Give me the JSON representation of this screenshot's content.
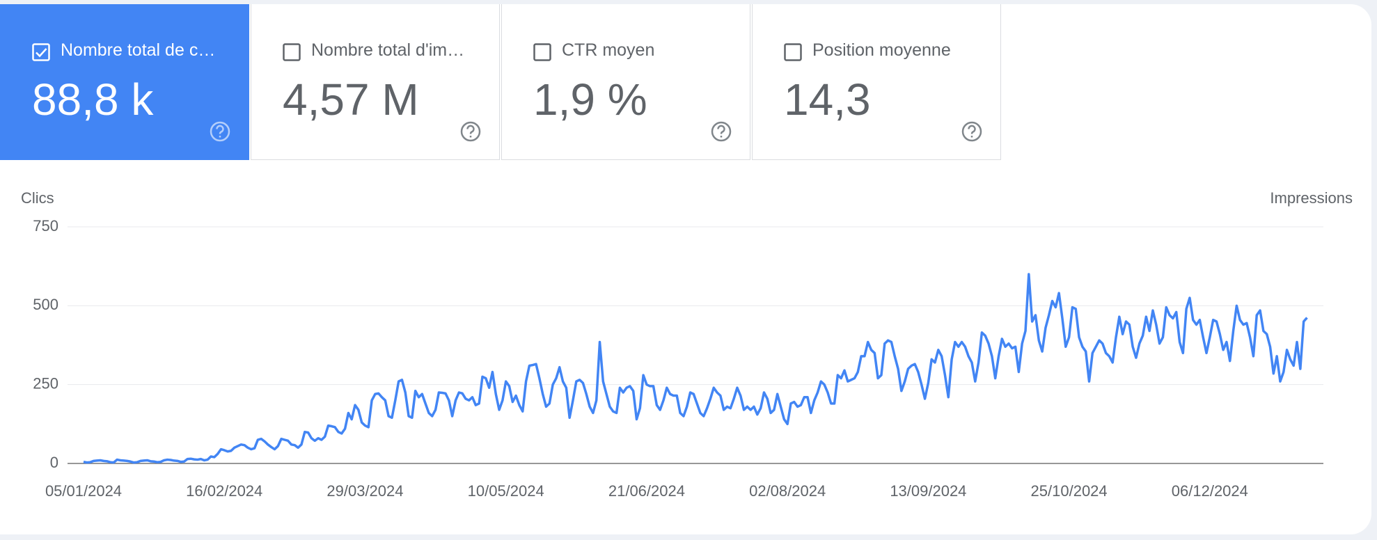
{
  "cards": [
    {
      "label": "Nombre total de c…",
      "value": "88,8 k",
      "checked": true
    },
    {
      "label": "Nombre total d'im…",
      "value": "4,57 M",
      "checked": false
    },
    {
      "label": "CTR moyen",
      "value": "1,9 %",
      "checked": false
    },
    {
      "label": "Position moyenne",
      "value": "14,3",
      "checked": false
    }
  ],
  "chart_data": {
    "type": "line",
    "y_label": "Clics",
    "y2_label": "Impressions",
    "ylim": [
      0,
      750
    ],
    "yticks": [
      0,
      250,
      500,
      750
    ],
    "grid": true,
    "categories": [
      "05/01/2024",
      null,
      null,
      null,
      null,
      null,
      null,
      null,
      null,
      null,
      null,
      null,
      null,
      null,
      null,
      null,
      null,
      null,
      null,
      null,
      null,
      null,
      null,
      null,
      null,
      null,
      null,
      null,
      null,
      null,
      null,
      null,
      null,
      null,
      null,
      null,
      null,
      null,
      null,
      null,
      null,
      null,
      "16/02/2024",
      null,
      null,
      null,
      null,
      null,
      null,
      null,
      null,
      null,
      null,
      null,
      null,
      null,
      null,
      null,
      null,
      null,
      null,
      null,
      null,
      null,
      null,
      null,
      null,
      null,
      null,
      null,
      null,
      null,
      null,
      null,
      null,
      null,
      null,
      null,
      null,
      null,
      null,
      null,
      null,
      null,
      "29/03/2024",
      null,
      null,
      null,
      null,
      null,
      null,
      null,
      null,
      null,
      null,
      null,
      null,
      null,
      null,
      null,
      null,
      null,
      null,
      null,
      null,
      null,
      null,
      null,
      null,
      null,
      null,
      null,
      null,
      null,
      null,
      null,
      null,
      null,
      null,
      null,
      null,
      null,
      null,
      null,
      null,
      null,
      "10/05/2024",
      null,
      null,
      null,
      null,
      null,
      null,
      null,
      null,
      null,
      null,
      null,
      null,
      null,
      null,
      null,
      null,
      null,
      null,
      null,
      null,
      null,
      null,
      null,
      null,
      null,
      null,
      null,
      null,
      null,
      null,
      null,
      null,
      null,
      null,
      null,
      null,
      null,
      null,
      null,
      null,
      null,
      "21/06/2024",
      null,
      null,
      null,
      null,
      null,
      null,
      null,
      null,
      null,
      null,
      null,
      null,
      null,
      null,
      null,
      null,
      null,
      null,
      null,
      null,
      null,
      null,
      null,
      null,
      null,
      null,
      null,
      null,
      null,
      null,
      null,
      null,
      null,
      null,
      null,
      null,
      null,
      null,
      null,
      null,
      null,
      "02/08/2024",
      null,
      null,
      null,
      null,
      null,
      null,
      null,
      null,
      null,
      null,
      null,
      null,
      null,
      null,
      null,
      null,
      null,
      null,
      null,
      null,
      null,
      null,
      null,
      null,
      null,
      null,
      null,
      null,
      null,
      null,
      null,
      null,
      null,
      null,
      null,
      null,
      null,
      null,
      null,
      null,
      null,
      "13/09/2024",
      null,
      null,
      null,
      null,
      null,
      null,
      null,
      null,
      null,
      null,
      null,
      null,
      null,
      null,
      null,
      null,
      null,
      null,
      null,
      null,
      null,
      null,
      null,
      null,
      null,
      null,
      null,
      null,
      null,
      null,
      null,
      null,
      null,
      null,
      null,
      null,
      null,
      null,
      null,
      null,
      null,
      "25/10/2024",
      null,
      null,
      null,
      null,
      null,
      null,
      null,
      null,
      null,
      null,
      null,
      null,
      null,
      null,
      null,
      null,
      null,
      null,
      null,
      null,
      null,
      null,
      null,
      null,
      null,
      null,
      null,
      null,
      null,
      null,
      null,
      null,
      null,
      null,
      null,
      null,
      null,
      null,
      null,
      null,
      null,
      "06/12/2024",
      null,
      null,
      null,
      null,
      null,
      null,
      null,
      null,
      null,
      null,
      null,
      null,
      null,
      null,
      null,
      null,
      null,
      null,
      null,
      null,
      null,
      null,
      null,
      null,
      null,
      null,
      null,
      null,
      null
    ],
    "series": [
      {
        "name": "Clics",
        "color": "#4285f4",
        "values": [
          5,
          3,
          4,
          8,
          9,
          10,
          8,
          7,
          4,
          3,
          12,
          10,
          9,
          8,
          6,
          3,
          4,
          8,
          9,
          10,
          7,
          6,
          4,
          5,
          10,
          12,
          11,
          9,
          8,
          5,
          6,
          14,
          15,
          13,
          12,
          14,
          10,
          12,
          22,
          20,
          30,
          45,
          42,
          38,
          40,
          50,
          55,
          60,
          58,
          50,
          45,
          48,
          75,
          78,
          70,
          60,
          52,
          45,
          55,
          78,
          75,
          72,
          60,
          58,
          50,
          60,
          100,
          98,
          80,
          72,
          80,
          75,
          85,
          120,
          118,
          115,
          100,
          95,
          110,
          160,
          140,
          185,
          170,
          130,
          120,
          115,
          200,
          220,
          222,
          210,
          200,
          150,
          145,
          200,
          260,
          265,
          225,
          150,
          145,
          230,
          210,
          220,
          190,
          160,
          150,
          170,
          225,
          224,
          222,
          200,
          150,
          200,
          225,
          222,
          205,
          200,
          210,
          185,
          190,
          275,
          270,
          240,
          290,
          220,
          170,
          200,
          260,
          245,
          195,
          215,
          185,
          165,
          260,
          310,
          312,
          315,
          270,
          220,
          180,
          190,
          250,
          270,
          305,
          260,
          240,
          145,
          200,
          260,
          265,
          255,
          220,
          180,
          160,
          200,
          385,
          260,
          220,
          180,
          165,
          160,
          240,
          225,
          240,
          245,
          230,
          140,
          175,
          280,
          250,
          245,
          245,
          185,
          170,
          200,
          240,
          220,
          215,
          215,
          160,
          150,
          180,
          225,
          220,
          190,
          160,
          150,
          175,
          205,
          240,
          225,
          215,
          170,
          180,
          175,
          205,
          240,
          215,
          170,
          180,
          170,
          180,
          155,
          175,
          225,
          205,
          160,
          170,
          220,
          180,
          140,
          125,
          190,
          195,
          180,
          185,
          210,
          210,
          160,
          200,
          225,
          260,
          250,
          225,
          190,
          190,
          280,
          270,
          295,
          260,
          265,
          270,
          290,
          340,
          340,
          385,
          360,
          350,
          270,
          280,
          380,
          390,
          385,
          340,
          300,
          230,
          260,
          300,
          310,
          315,
          290,
          250,
          205,
          255,
          330,
          320,
          360,
          340,
          280,
          210,
          330,
          385,
          370,
          385,
          370,
          340,
          320,
          260,
          320,
          415,
          405,
          380,
          340,
          270,
          340,
          395,
          370,
          380,
          365,
          370,
          290,
          380,
          420,
          600,
          450,
          470,
          390,
          355,
          430,
          470,
          515,
          495,
          540,
          460,
          370,
          400,
          495,
          490,
          400,
          370,
          355,
          260,
          350,
          370,
          390,
          380,
          350,
          340,
          320,
          400,
          465,
          410,
          450,
          440,
          370,
          335,
          380,
          405,
          465,
          420,
          485,
          440,
          380,
          400,
          495,
          470,
          460,
          480,
          385,
          350,
          490,
          525,
          455,
          440,
          455,
          400,
          350,
          400,
          455,
          450,
          410,
          360,
          385,
          325,
          420,
          500,
          455,
          440,
          445,
          400,
          340,
          470,
          485,
          420,
          410,
          370,
          285,
          340,
          260,
          290,
          360,
          330,
          310,
          385,
          300,
          450,
          462
        ]
      }
    ]
  }
}
